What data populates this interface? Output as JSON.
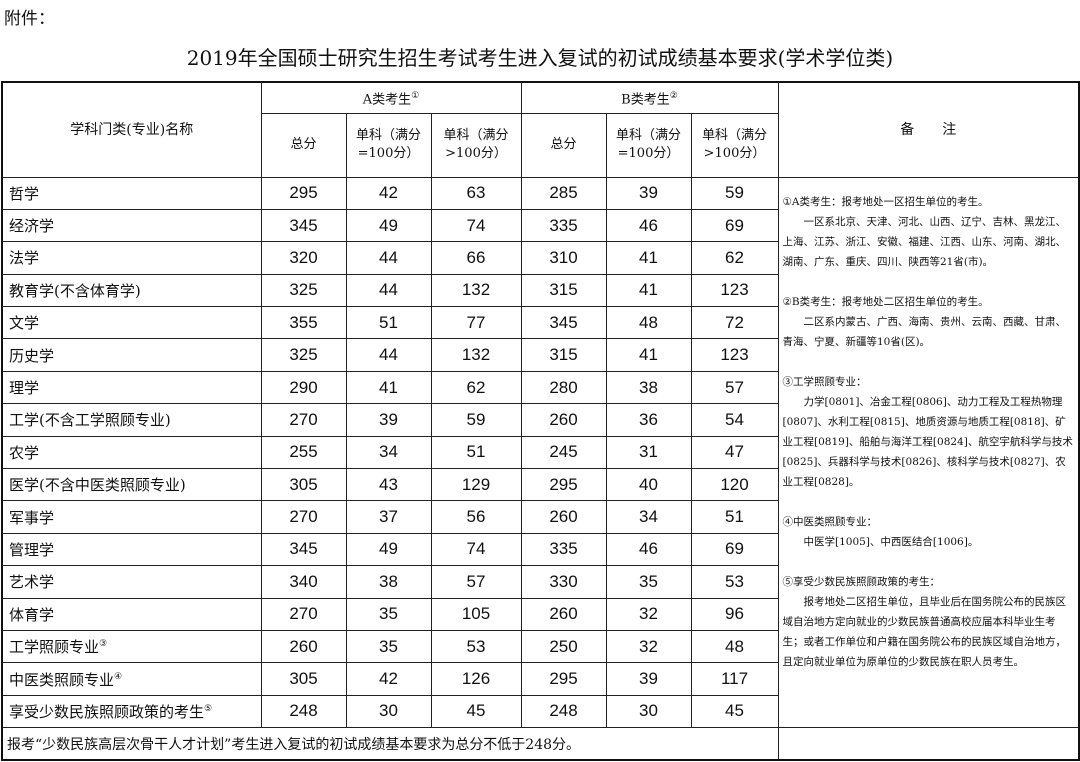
{
  "attachment_label": "附件：",
  "title": "2019年全国硕士研究生招生考试考生进入复试的初试成绩基本要求(学术学位类)",
  "header": {
    "name_col": "学科门类(专业)名称",
    "group_a": "A类考生",
    "group_a_mark": "①",
    "group_b": "B类考生",
    "group_b_mark": "②",
    "total": "总分",
    "single_100": "单科（满分=100分）",
    "single_gt100": "单科（满分>100分）",
    "notes": "备　　注"
  },
  "rows": [
    {
      "name": "哲学",
      "mark": "",
      "a": [
        "295",
        "42",
        "63"
      ],
      "b": [
        "285",
        "39",
        "59"
      ]
    },
    {
      "name": "经济学",
      "mark": "",
      "a": [
        "345",
        "49",
        "74"
      ],
      "b": [
        "335",
        "46",
        "69"
      ]
    },
    {
      "name": "法学",
      "mark": "",
      "a": [
        "320",
        "44",
        "66"
      ],
      "b": [
        "310",
        "41",
        "62"
      ]
    },
    {
      "name": "教育学(不含体育学)",
      "mark": "",
      "a": [
        "325",
        "44",
        "132"
      ],
      "b": [
        "315",
        "41",
        "123"
      ]
    },
    {
      "name": "文学",
      "mark": "",
      "a": [
        "355",
        "51",
        "77"
      ],
      "b": [
        "345",
        "48",
        "72"
      ]
    },
    {
      "name": "历史学",
      "mark": "",
      "a": [
        "325",
        "44",
        "132"
      ],
      "b": [
        "315",
        "41",
        "123"
      ]
    },
    {
      "name": "理学",
      "mark": "",
      "a": [
        "290",
        "41",
        "62"
      ],
      "b": [
        "280",
        "38",
        "57"
      ]
    },
    {
      "name": "工学(不含工学照顾专业)",
      "mark": "",
      "a": [
        "270",
        "39",
        "59"
      ],
      "b": [
        "260",
        "36",
        "54"
      ]
    },
    {
      "name": "农学",
      "mark": "",
      "a": [
        "255",
        "34",
        "51"
      ],
      "b": [
        "245",
        "31",
        "47"
      ]
    },
    {
      "name": "医学(不含中医类照顾专业)",
      "mark": "",
      "a": [
        "305",
        "43",
        "129"
      ],
      "b": [
        "295",
        "40",
        "120"
      ]
    },
    {
      "name": "军事学",
      "mark": "",
      "a": [
        "270",
        "37",
        "56"
      ],
      "b": [
        "260",
        "34",
        "51"
      ]
    },
    {
      "name": "管理学",
      "mark": "",
      "a": [
        "345",
        "49",
        "74"
      ],
      "b": [
        "335",
        "46",
        "69"
      ]
    },
    {
      "name": "艺术学",
      "mark": "",
      "a": [
        "340",
        "38",
        "57"
      ],
      "b": [
        "330",
        "35",
        "53"
      ]
    },
    {
      "name": "体育学",
      "mark": "",
      "a": [
        "270",
        "35",
        "105"
      ],
      "b": [
        "260",
        "32",
        "96"
      ]
    },
    {
      "name": "工学照顾专业",
      "mark": "③",
      "a": [
        "260",
        "35",
        "53"
      ],
      "b": [
        "250",
        "32",
        "48"
      ]
    },
    {
      "name": "中医类照顾专业",
      "mark": "④",
      "a": [
        "305",
        "42",
        "126"
      ],
      "b": [
        "295",
        "39",
        "117"
      ]
    },
    {
      "name": "享受少数民族照顾政策的考生",
      "mark": "⑤",
      "a": [
        "248",
        "30",
        "45"
      ],
      "b": [
        "248",
        "30",
        "45"
      ]
    }
  ],
  "notes": [
    {
      "head": "①A类考生：报考地处一区招生单位的考生。",
      "body": "一区系北京、天津、河北、山西、辽宁、吉林、黑龙江、上海、江苏、浙江、安徽、福建、江西、山东、河南、湖北、湖南、广东、重庆、四川、陕西等21省(市)。"
    },
    {
      "head": "②B类考生：报考地处二区招生单位的考生。",
      "body": "二区系内蒙古、广西、海南、贵州、云南、西藏、甘肃、青海、宁夏、新疆等10省(区)。"
    },
    {
      "head": "③工学照顾专业：",
      "body": "力学[0801]、冶金工程[0806]、动力工程及工程热物理[0807]、水利工程[0815]、地质资源与地质工程[0818]、矿业工程[0819]、船舶与海洋工程[0824]、航空宇航科学与技术[0825]、兵器科学与技术[0826]、核科学与技术[0827]、农业工程[0828]。"
    },
    {
      "head": "④中医类照顾专业：",
      "body": "中医学[1005]、中西医结合[1006]。"
    },
    {
      "head": "⑤享受少数民族照顾政策的考生：",
      "body": "报考地处二区招生单位，且毕业后在国务院公布的民族区域自治地方定向就业的少数民族普通高校应届本科毕业生考生；或者工作单位和户籍在国务院公布的民族区域自治地方，且定向就业单位为原单位的少数民族在职人员考生。"
    }
  ],
  "footer": "报考“少数民族高层次骨干人才计划”考生进入复试的初试成绩基本要求为总分不低于248分。"
}
